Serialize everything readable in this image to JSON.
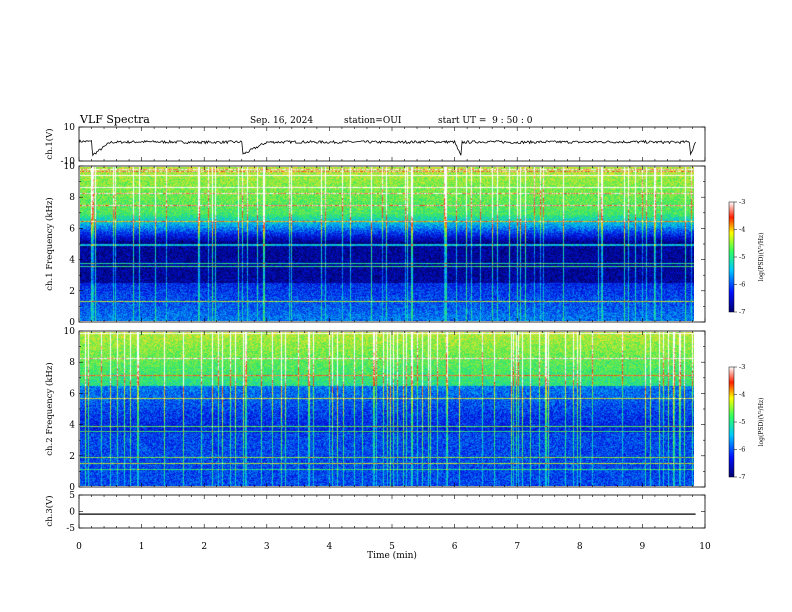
{
  "header": {
    "title": "VLF Spectra",
    "date": "Sep. 16, 2024",
    "station": "station=OUI",
    "start": "start UT =  9 : 50 : 0"
  },
  "colors": {
    "spectro_low": "#000070",
    "spectro_mid": "#0a6cf0",
    "spectro_high": "#58e850",
    "spectro_peak": "#e82a10"
  },
  "chart_data": [
    {
      "type": "line",
      "name": "ch1-waveform",
      "ylabel": "ch.1(V)",
      "ylim": [
        -10,
        10
      ],
      "yticks": [
        "10",
        "-10"
      ],
      "x": [
        0,
        0.2,
        0.22,
        0.5,
        1.0,
        1.5,
        2.0,
        2.6,
        2.62,
        3.0,
        3.5,
        4.0,
        4.5,
        5.0,
        5.5,
        6.0,
        6.1,
        6.12,
        6.5,
        7.0,
        7.5,
        8.0,
        8.5,
        9.0,
        9.5,
        9.75,
        9.77,
        9.85
      ],
      "values": [
        1.5,
        1.5,
        -6.5,
        1.0,
        1.3,
        1.2,
        1.0,
        1.2,
        -6.0,
        1.1,
        1.2,
        1.1,
        1.2,
        1.0,
        1.3,
        1.2,
        -7.0,
        1.0,
        1.4,
        1.0,
        1.2,
        1.1,
        1.3,
        1.2,
        1.0,
        1.2,
        -6.0,
        1.1
      ]
    },
    {
      "type": "heatmap",
      "name": "ch1-spectrogram",
      "ylabel": "ch.1 Frequency (kHz)",
      "ylim": [
        0,
        10
      ],
      "yticks": [
        "0",
        "2",
        "4",
        "6",
        "8",
        "10"
      ],
      "colorbar": {
        "label": "log(PSD)(V²/Hz)",
        "range": [
          -7,
          -3
        ],
        "ticks": [
          "-3",
          "-4",
          "-5",
          "-6",
          "-7"
        ]
      }
    },
    {
      "type": "heatmap",
      "name": "ch2-spectrogram",
      "ylabel": "ch.2 Frequency (kHz)",
      "ylim": [
        0,
        10
      ],
      "yticks": [
        "0",
        "2",
        "4",
        "6",
        "8",
        "10"
      ],
      "colorbar": {
        "label": "log(PSD)(V²/Hz)",
        "range": [
          -7,
          -3
        ],
        "ticks": [
          "-3",
          "-4",
          "-5",
          "-6",
          "-7"
        ]
      }
    },
    {
      "type": "line",
      "name": "ch3-waveform",
      "ylabel": "ch.3(V)",
      "ylim": [
        -5,
        5
      ],
      "yticks": [
        "5",
        "0",
        "-5"
      ],
      "x": [
        0,
        9.85
      ],
      "values": [
        -0.8,
        -0.8
      ]
    }
  ],
  "xaxis": {
    "label": "Time (min)",
    "range": [
      0,
      10
    ],
    "ticks": [
      "0",
      "1",
      "2",
      "3",
      "4",
      "5",
      "6",
      "7",
      "8",
      "9",
      "10"
    ]
  }
}
